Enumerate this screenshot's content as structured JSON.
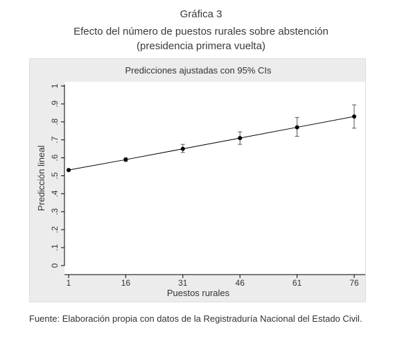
{
  "figure": {
    "title_line1": "Gráfica 3",
    "title_line2": "Efecto del número de puestos rurales sobre abstención",
    "title_line3": "(presidencia primera vuelta)",
    "source": "Fuente: Elaboración propia con datos de la Registraduría Nacional del Estado Civil."
  },
  "chart_data": {
    "type": "scatter",
    "title": "Predicciones ajustadas con 95% CIs",
    "xlabel": "Puestos rurales",
    "ylabel": "Predicción lineal",
    "x_ticks": [
      1,
      16,
      31,
      46,
      61,
      76
    ],
    "y_ticks": [
      0,
      0.1,
      0.2,
      0.3,
      0.4,
      0.5,
      0.6,
      0.7,
      0.8,
      0.9,
      1
    ],
    "y_tick_labels": [
      "0",
      ".1",
      ".2",
      ".3",
      ".4",
      ".5",
      ".6",
      ".7",
      ".8",
      ".9",
      "1"
    ],
    "xlim": [
      1,
      76
    ],
    "ylim": [
      0,
      1
    ],
    "grid": false,
    "series": [
      {
        "x": [
          1,
          16,
          31,
          46,
          61,
          76
        ],
        "y": [
          0.532,
          0.59,
          0.65,
          0.71,
          0.77,
          0.83
        ],
        "ci_low": [
          0.528,
          0.58,
          0.63,
          0.675,
          0.72,
          0.765
        ],
        "ci_high": [
          0.536,
          0.6,
          0.675,
          0.745,
          0.825,
          0.895
        ]
      }
    ],
    "colors": {
      "marker": "#000000",
      "line": "#000000",
      "panel": "#ececec",
      "plot_area": "#ffffff"
    }
  }
}
